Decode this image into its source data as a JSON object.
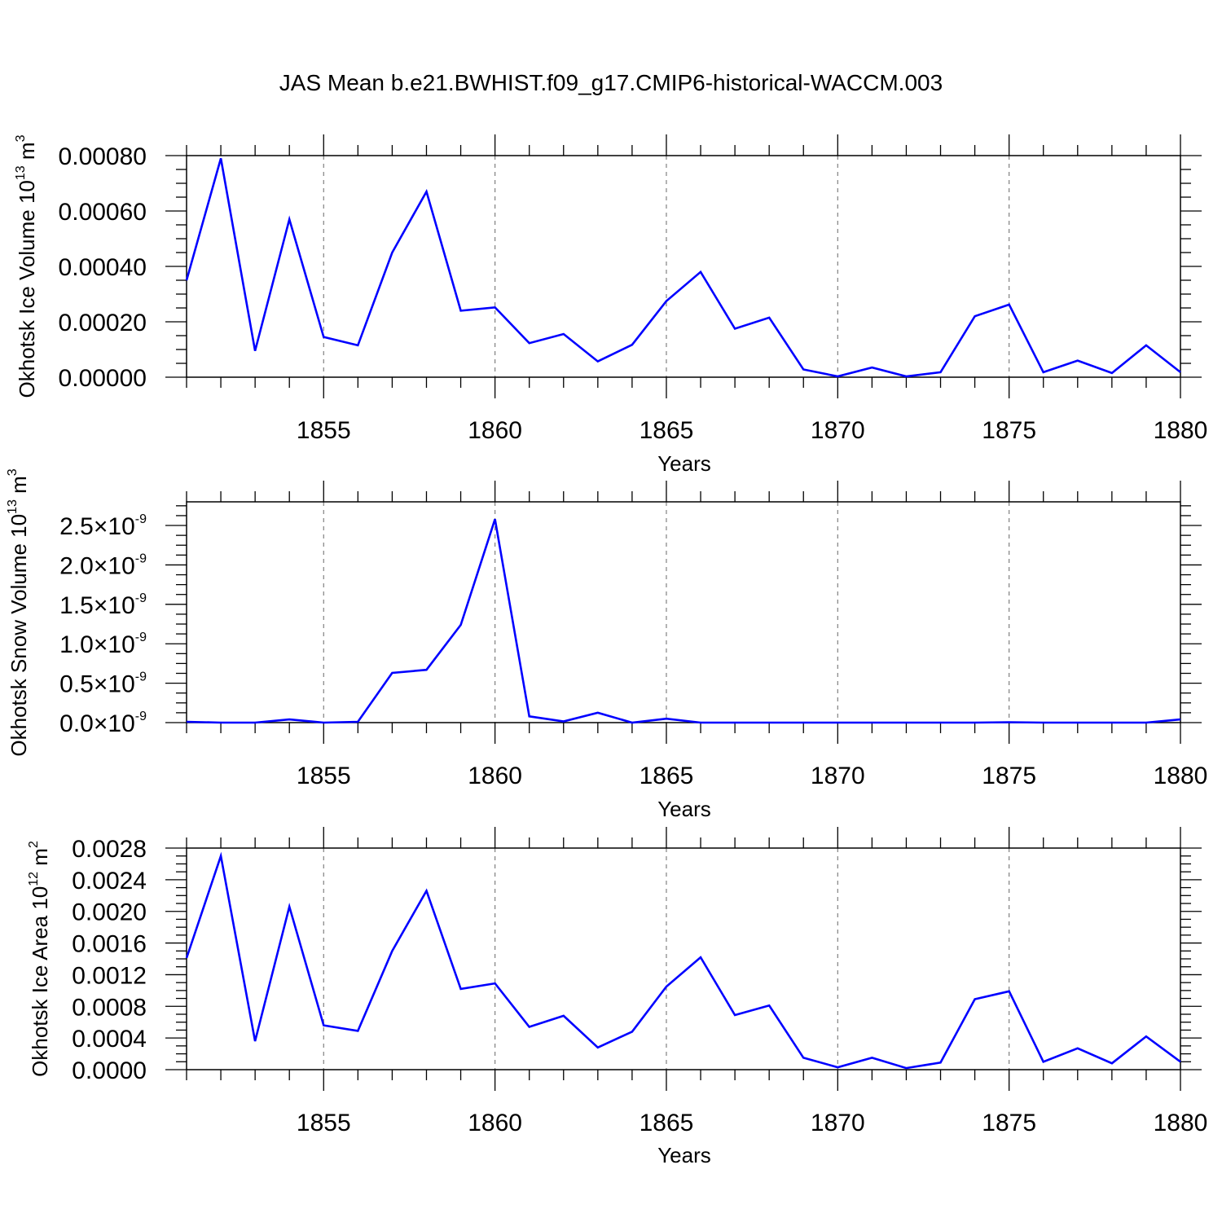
{
  "title": "JAS Mean b.e21.BWHIST.f09_g17.CMIP6-historical-WACCM.003",
  "colors": {
    "line": "#0000ff",
    "axis": "#000000",
    "grid": "#808080"
  },
  "chart_data": [
    {
      "type": "line",
      "xlabel": "Years",
      "ylabel": {
        "text": "Okhotsk Ice Volume 10",
        "exp": "13",
        "unit": " m",
        "unit_exp": "3"
      },
      "xlim": [
        1851,
        1880
      ],
      "ylim": [
        0,
        0.0008
      ],
      "x_ticks": [
        1855,
        1860,
        1865,
        1870,
        1875,
        1880
      ],
      "y_ticks": [
        0,
        0.0002,
        0.0004,
        0.0006,
        0.0008
      ],
      "y_tick_labels": [
        "0.00000",
        "0.00020",
        "0.00040",
        "0.00060",
        "0.00080"
      ],
      "grid": "vertical dashed at major x ticks",
      "x": [
        1851,
        1852,
        1853,
        1854,
        1855,
        1856,
        1857,
        1858,
        1859,
        1860,
        1861,
        1862,
        1863,
        1864,
        1865,
        1866,
        1867,
        1868,
        1869,
        1870,
        1871,
        1872,
        1873,
        1874,
        1875,
        1876,
        1877,
        1878,
        1879,
        1880
      ],
      "series": [
        {
          "values": [
            0.00035,
            0.00079,
            9.5e-05,
            0.00057,
            0.000145,
            0.000115,
            0.00045,
            0.00067,
            0.00024,
            0.000252,
            0.000123,
            0.000156,
            5.7e-05,
            0.000117,
            0.000275,
            0.00038,
            0.000175,
            0.000215,
            2.8e-05,
            3e-06,
            3.5e-05,
            3e-06,
            1.8e-05,
            0.00022,
            0.000262,
            1.8e-05,
            6e-05,
            1.5e-05,
            0.000115,
            1.8e-05
          ]
        }
      ]
    },
    {
      "type": "line",
      "xlabel": "Years",
      "ylabel": {
        "text": "Okhotsk Snow Volume 10",
        "exp": "13",
        "unit": " m",
        "unit_exp": "3"
      },
      "xlim": [
        1851,
        1880
      ],
      "ylim": [
        0,
        2.8e-09
      ],
      "x_ticks": [
        1855,
        1860,
        1865,
        1870,
        1875,
        1880
      ],
      "y_ticks": [
        0,
        5e-10,
        1e-09,
        1.5e-09,
        2e-09,
        2.5e-09
      ],
      "y_tick_labels": [
        "0.0",
        "0.5",
        "1.0",
        "1.5",
        "2.0",
        "2.5"
      ],
      "y_tick_suffix": "×10",
      "y_tick_exp": "-9",
      "grid": "vertical dashed at major x ticks",
      "x": [
        1851,
        1852,
        1853,
        1854,
        1855,
        1856,
        1857,
        1858,
        1859,
        1860,
        1861,
        1862,
        1863,
        1864,
        1865,
        1866,
        1867,
        1868,
        1869,
        1870,
        1871,
        1872,
        1873,
        1874,
        1875,
        1876,
        1877,
        1878,
        1879,
        1880
      ],
      "series": [
        {
          "values": [
            1e-11,
            0,
            0,
            4e-11,
            0,
            1e-11,
            6.3e-10,
            6.7e-10,
            1.24e-09,
            2.58e-09,
            8e-11,
            1.5e-11,
            1.25e-10,
            0,
            5e-11,
            0,
            0,
            0,
            0,
            0,
            0,
            0,
            0,
            0,
            5e-12,
            0,
            0,
            0,
            0,
            4e-11
          ]
        }
      ]
    },
    {
      "type": "line",
      "xlabel": "Years",
      "ylabel": {
        "text": "Okhotsk Ice Area 10",
        "exp": "12",
        "unit": " m",
        "unit_exp": "2"
      },
      "xlim": [
        1851,
        1880
      ],
      "ylim": [
        0,
        0.0028
      ],
      "x_ticks": [
        1855,
        1860,
        1865,
        1870,
        1875,
        1880
      ],
      "y_ticks": [
        0,
        0.0004,
        0.0008,
        0.0012,
        0.0016,
        0.002,
        0.0024,
        0.0028
      ],
      "y_tick_labels": [
        "0.0000",
        "0.0004",
        "0.0008",
        "0.0012",
        "0.0016",
        "0.0020",
        "0.0024",
        "0.0028"
      ],
      "grid": "vertical dashed at major x ticks",
      "x": [
        1851,
        1852,
        1853,
        1854,
        1855,
        1856,
        1857,
        1858,
        1859,
        1860,
        1861,
        1862,
        1863,
        1864,
        1865,
        1866,
        1867,
        1868,
        1869,
        1870,
        1871,
        1872,
        1873,
        1874,
        1875,
        1876,
        1877,
        1878,
        1879,
        1880
      ],
      "series": [
        {
          "values": [
            0.00141,
            0.0027,
            0.00036,
            0.00206,
            0.00056,
            0.00049,
            0.0015,
            0.00226,
            0.00102,
            0.00109,
            0.00054,
            0.00068,
            0.00028,
            0.00048,
            0.00105,
            0.00142,
            0.00069,
            0.00081,
            0.00015,
            3e-05,
            0.00015,
            2e-05,
            9e-05,
            0.00089,
            0.00099,
            0.0001,
            0.00027,
            8e-05,
            0.00042,
            0.0001
          ]
        }
      ]
    }
  ]
}
